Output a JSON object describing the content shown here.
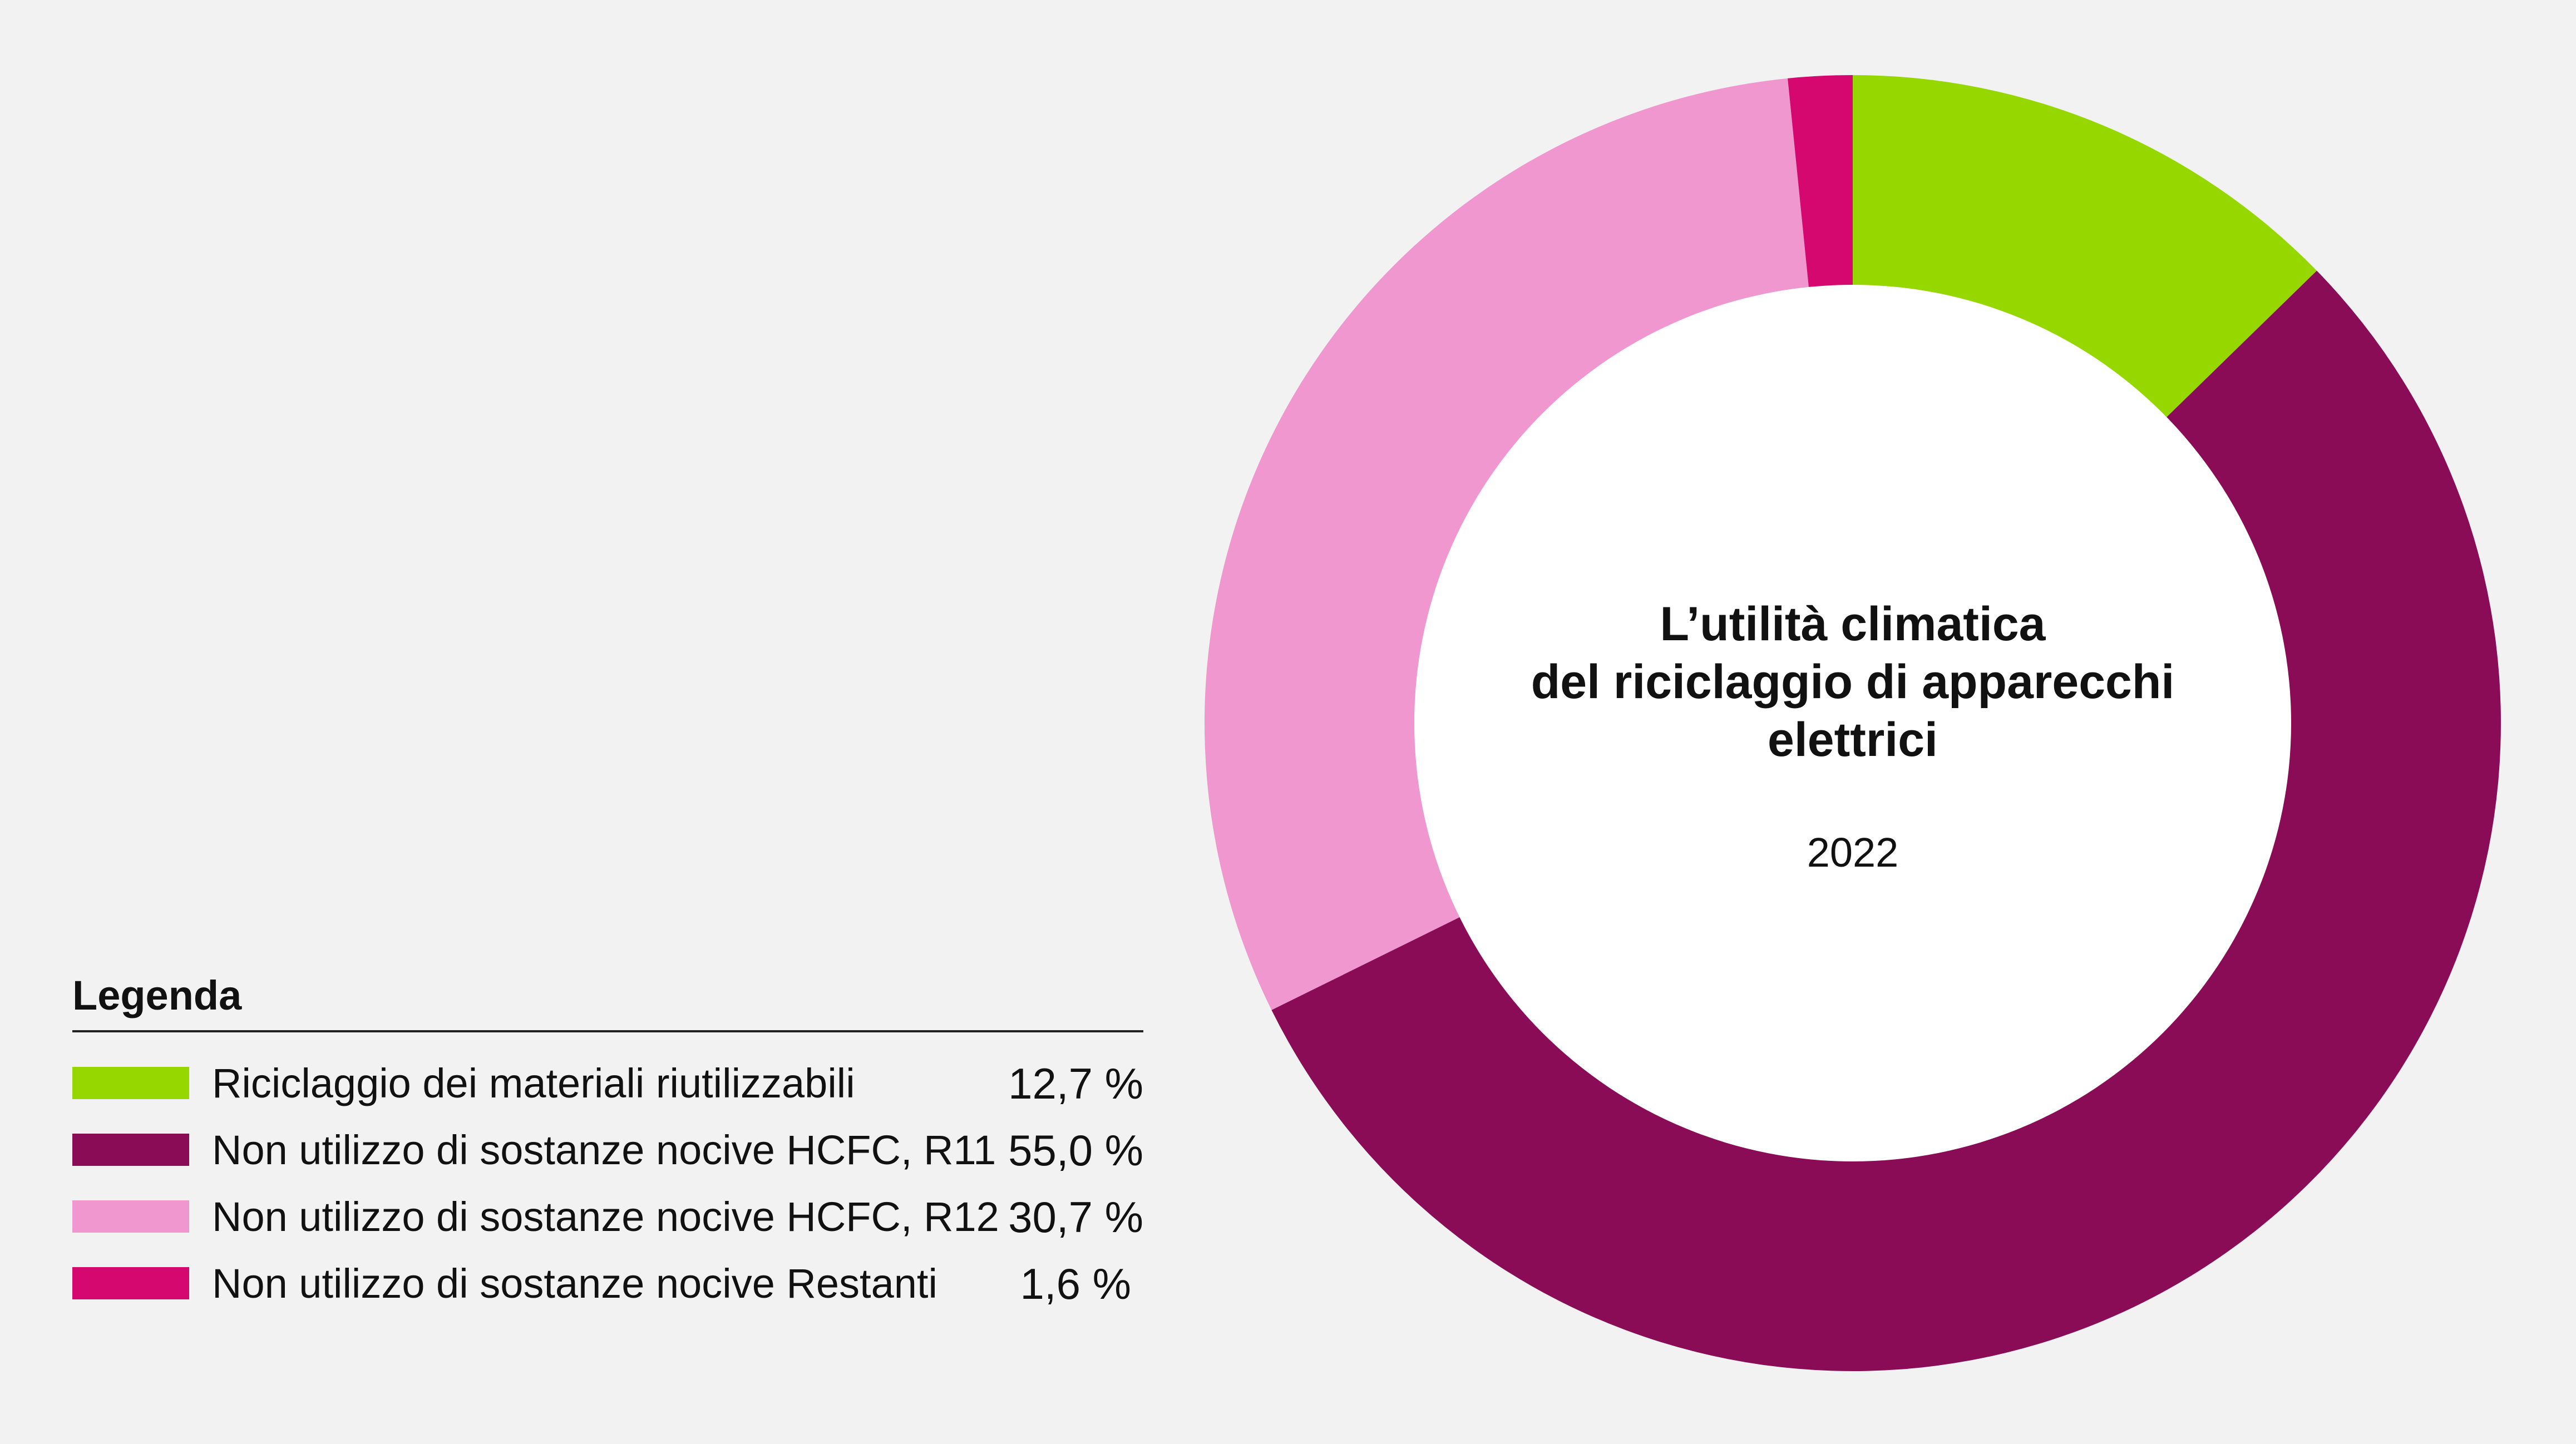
{
  "chart_data": {
    "type": "pie",
    "title": "L’utilità climatica del riciclaggio di apparecchi elettrici",
    "title_lines": [
      "L’utilità climatica",
      "del riciclaggio di apparecchi",
      "elettrici"
    ],
    "subtitle": "2022",
    "legend_title": "Legenda",
    "legend_position": "bottom-left",
    "series": [
      {
        "name": "Riciclaggio dei materiali riutilizzabili",
        "value": 12.7,
        "label": "12,7 %",
        "color": "#97d700"
      },
      {
        "name": "Non utilizzo di sostanze nocive HCFC, R11",
        "value": 55.0,
        "label": "55,0 %",
        "color": "#8a0c57"
      },
      {
        "name": "Non utilizzo di sostanze nocive HCFC, R12",
        "value": 30.7,
        "label": "30,7 %",
        "color": "#f097d0"
      },
      {
        "name": "Non utilizzo di sostanze nocive Restanti",
        "value": 1.6,
        "label": "1,6 %",
        "color": "#d4086f"
      }
    ]
  }
}
